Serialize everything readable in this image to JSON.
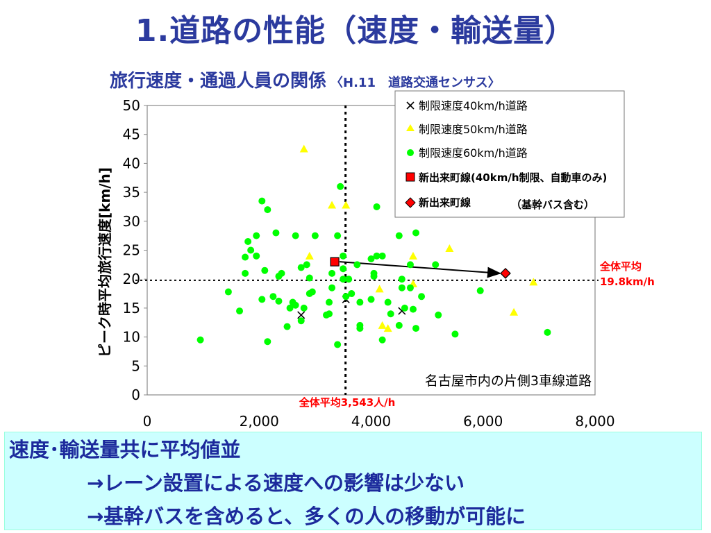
{
  "title": "1.道路の性能（速度・輸送量）",
  "subtitle": "旅行速度・通過人員の関係",
  "subtitle_note": "〈H.11　道路交通センサス〉",
  "chart_data": {
    "type": "scatter",
    "ylabel": "ピーク時平均旅行速度[km/h]",
    "xlabel": "",
    "xlim": [
      0,
      8000
    ],
    "ylim": [
      0,
      50
    ],
    "x_ticks": [
      "0",
      "2,000",
      "4,000",
      "6,000",
      "8,000"
    ],
    "y_ticks": [
      "0",
      "5",
      "10",
      "15",
      "20",
      "25",
      "30",
      "35",
      "40",
      "45",
      "50"
    ],
    "inner_label": "名古屋市内の片側3車線道路",
    "avg_speed": {
      "value": 19.8,
      "label_line1": "全体平均",
      "label_line2": "19.8km/h"
    },
    "avg_volume": {
      "value": 3543,
      "label": "全体平均3,543人/h"
    },
    "legend": [
      {
        "name": "制限速度40km/h道路",
        "marker": "×"
      },
      {
        "name": "制限速度50km/h道路",
        "marker": "▲"
      },
      {
        "name": "制限速度60km/h道路",
        "marker": "●"
      },
      {
        "name": "新出来町線(40km/h制限、自動車のみ)",
        "marker": "■"
      },
      {
        "name": "新出来町線",
        "marker": "◆",
        "note": "（基幹バス含む）"
      }
    ],
    "series": [
      {
        "name": "制限速度40km/h道路",
        "marker": "x",
        "color": "#000000",
        "points": [
          [
            2750,
            13.8
          ],
          [
            3550,
            16.5
          ],
          [
            4550,
            14.5
          ]
        ]
      },
      {
        "name": "制限速度50km/h道路",
        "marker": "triangle",
        "color": "#ffff00",
        "points": [
          [
            2800,
            42.5
          ],
          [
            3300,
            32.8
          ],
          [
            3550,
            32.8
          ],
          [
            2900,
            24.0
          ],
          [
            4150,
            18.3
          ],
          [
            4200,
            12.0
          ],
          [
            4300,
            11.5
          ],
          [
            4750,
            24.0
          ],
          [
            4750,
            19.2
          ],
          [
            5400,
            25.3
          ],
          [
            6550,
            14.3
          ],
          [
            6900,
            19.5
          ]
        ]
      },
      {
        "name": "制限速度60km/h道路",
        "marker": "circle",
        "color": "#00ff00",
        "points": [
          [
            950,
            9.5
          ],
          [
            1450,
            17.8
          ],
          [
            1650,
            14.5
          ],
          [
            1750,
            21.0
          ],
          [
            1800,
            26.5
          ],
          [
            1750,
            23.8
          ],
          [
            1850,
            25.0
          ],
          [
            1950,
            24.0
          ],
          [
            1950,
            27.5
          ],
          [
            2050,
            33.5
          ],
          [
            2050,
            16.5
          ],
          [
            2100,
            21.5
          ],
          [
            2150,
            32.0
          ],
          [
            2150,
            9.2
          ],
          [
            2250,
            17.0
          ],
          [
            2300,
            28.0
          ],
          [
            2350,
            20.5
          ],
          [
            2350,
            16.2
          ],
          [
            2400,
            21.0
          ],
          [
            2500,
            11.8
          ],
          [
            2550,
            15.0
          ],
          [
            2600,
            16.0
          ],
          [
            2650,
            27.5
          ],
          [
            2650,
            15.5
          ],
          [
            2750,
            12.8
          ],
          [
            2750,
            22.0
          ],
          [
            2800,
            15.0
          ],
          [
            2850,
            22.5
          ],
          [
            2900,
            17.5
          ],
          [
            2900,
            20.2
          ],
          [
            2950,
            17.8
          ],
          [
            3000,
            27.5
          ],
          [
            3200,
            13.8
          ],
          [
            3250,
            14.0
          ],
          [
            3250,
            16.0
          ],
          [
            3300,
            18.5
          ],
          [
            3300,
            21.0
          ],
          [
            3400,
            27.5
          ],
          [
            3450,
            36.0
          ],
          [
            3400,
            8.7
          ],
          [
            3500,
            24.0
          ],
          [
            3500,
            21.8
          ],
          [
            3500,
            20.0
          ],
          [
            3550,
            17.0
          ],
          [
            3600,
            20.0
          ],
          [
            3650,
            17.5
          ],
          [
            3750,
            22.5
          ],
          [
            3800,
            16.0
          ],
          [
            3800,
            12.0
          ],
          [
            3800,
            11.5
          ],
          [
            4000,
            16.5
          ],
          [
            4000,
            23.5
          ],
          [
            4050,
            20.5
          ],
          [
            4050,
            21.0
          ],
          [
            4100,
            32.5
          ],
          [
            4100,
            24.0
          ],
          [
            4200,
            9.5
          ],
          [
            4200,
            24.0
          ],
          [
            4300,
            16.0
          ],
          [
            4350,
            14.0
          ],
          [
            4500,
            27.5
          ],
          [
            4500,
            12.0
          ],
          [
            4550,
            18.5
          ],
          [
            4550,
            20.0
          ],
          [
            4600,
            15.0
          ],
          [
            4700,
            22.5
          ],
          [
            4700,
            18.5
          ],
          [
            4750,
            14.8
          ],
          [
            4800,
            11.5
          ],
          [
            4800,
            28.0
          ],
          [
            4900,
            17.0
          ],
          [
            5150,
            22.5
          ],
          [
            5200,
            13.8
          ],
          [
            5500,
            10.5
          ],
          [
            5950,
            18.0
          ],
          [
            7150,
            10.8
          ]
        ]
      },
      {
        "name": "新出来町線(40km/h制限、自動車のみ)",
        "marker": "square",
        "color": "#ff0000",
        "points": [
          [
            3350,
            23.0
          ]
        ]
      },
      {
        "name": "新出来町線",
        "marker": "diamond",
        "color": "#ff0000",
        "points": [
          [
            6400,
            21.0
          ]
        ]
      }
    ]
  },
  "bottom": {
    "line1": "速度･輸送量共に平均値並",
    "line2": "→レーン設置による速度への影響は少ない",
    "line3": "→基幹バスを含めると、多くの人の移動が可能に"
  }
}
